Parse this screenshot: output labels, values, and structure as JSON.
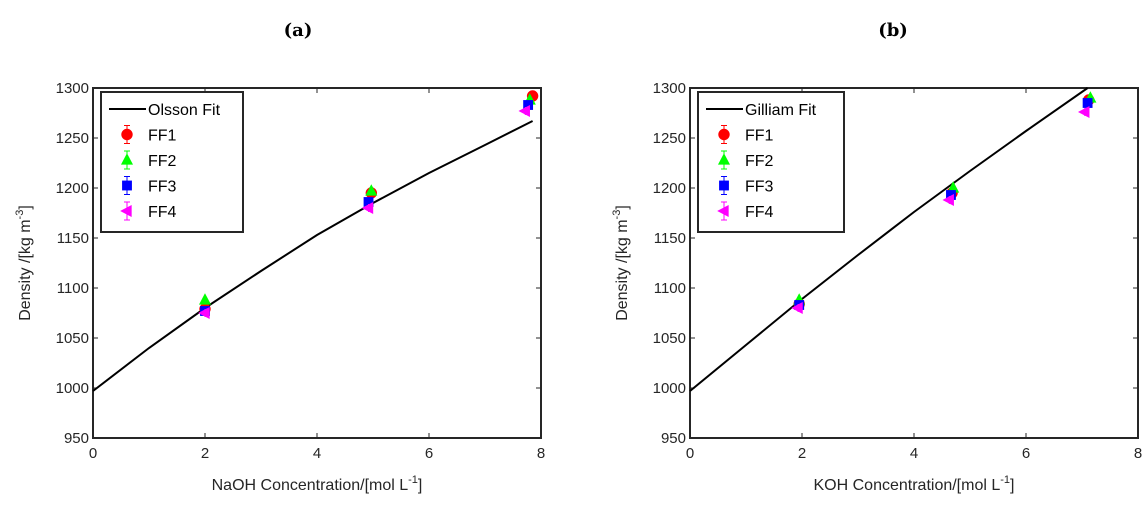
{
  "chart_data": [
    {
      "type": "scatter",
      "panel_label": "(a)",
      "xlabel": "NaOH Concentration/[mol L",
      "xlabel_sup": "-1",
      "xlabel_tail": "]",
      "ylabel": "Density /[kg m",
      "ylabel_sup": "-3",
      "ylabel_tail": "]",
      "xlim": [
        0,
        8
      ],
      "ylim": [
        950,
        1300
      ],
      "xticks": [
        0,
        2,
        4,
        6,
        8
      ],
      "yticks": [
        950,
        1000,
        1050,
        1100,
        1150,
        1200,
        1250,
        1300
      ],
      "legend_position": "top-left",
      "grid": false,
      "fit": {
        "name": "Olsson Fit",
        "color": "#000000",
        "points": [
          [
            0,
            997
          ],
          [
            1,
            1040
          ],
          [
            2,
            1080
          ],
          [
            3,
            1117
          ],
          [
            4,
            1153
          ],
          [
            5,
            1185
          ],
          [
            6,
            1215
          ],
          [
            7,
            1243
          ],
          [
            7.85,
            1267
          ]
        ]
      },
      "series": [
        {
          "name": "FF1",
          "marker": "circle",
          "color": "#ff0000",
          "points": [
            [
              2.0,
              1079
            ],
            [
              4.97,
              1195
            ],
            [
              7.85,
              1292
            ]
          ]
        },
        {
          "name": "FF2",
          "marker": "triangle-up",
          "color": "#00ff00",
          "points": [
            [
              2.0,
              1088
            ],
            [
              4.97,
              1197
            ],
            [
              7.8,
              1288
            ]
          ]
        },
        {
          "name": "FF3",
          "marker": "square",
          "color": "#0000ff",
          "points": [
            [
              2.0,
              1077
            ],
            [
              4.92,
              1186
            ],
            [
              7.77,
              1283
            ]
          ]
        },
        {
          "name": "FF4",
          "marker": "triangle-left",
          "color": "#ff00ff",
          "points": [
            [
              2.0,
              1075
            ],
            [
              4.92,
              1180
            ],
            [
              7.72,
              1277
            ]
          ]
        }
      ]
    },
    {
      "type": "scatter",
      "panel_label": "(b)",
      "xlabel": "KOH Concentration/[mol L",
      "xlabel_sup": "-1",
      "xlabel_tail": "]",
      "ylabel": "Density /[kg m",
      "ylabel_sup": "-3",
      "ylabel_tail": "]",
      "xlim": [
        0,
        8
      ],
      "ylim": [
        950,
        1300
      ],
      "xticks": [
        0,
        2,
        4,
        6,
        8
      ],
      "yticks": [
        950,
        1000,
        1050,
        1100,
        1150,
        1200,
        1250,
        1300
      ],
      "legend_position": "top-left",
      "grid": false,
      "fit": {
        "name": "Gilliam Fit",
        "color": "#000000",
        "points": [
          [
            0,
            997
          ],
          [
            1,
            1043
          ],
          [
            2,
            1089
          ],
          [
            3,
            1133
          ],
          [
            4,
            1176
          ],
          [
            5,
            1217
          ],
          [
            6,
            1257
          ],
          [
            7.1,
            1300
          ]
        ]
      },
      "series": [
        {
          "name": "FF1",
          "marker": "circle",
          "color": "#ff0000",
          "points": [
            [
              1.95,
              1084
            ],
            [
              4.68,
              1195
            ],
            [
              7.12,
              1288
            ]
          ]
        },
        {
          "name": "FF2",
          "marker": "triangle-up",
          "color": "#00ff00",
          "points": [
            [
              1.95,
              1088
            ],
            [
              4.7,
              1200
            ],
            [
              7.15,
              1290
            ]
          ]
        },
        {
          "name": "FF3",
          "marker": "square",
          "color": "#0000ff",
          "points": [
            [
              1.95,
              1083
            ],
            [
              4.66,
              1193
            ],
            [
              7.1,
              1285
            ]
          ]
        },
        {
          "name": "FF4",
          "marker": "triangle-left",
          "color": "#ff00ff",
          "points": [
            [
              1.93,
              1080
            ],
            [
              4.63,
              1188
            ],
            [
              7.05,
              1276
            ]
          ]
        }
      ]
    }
  ]
}
